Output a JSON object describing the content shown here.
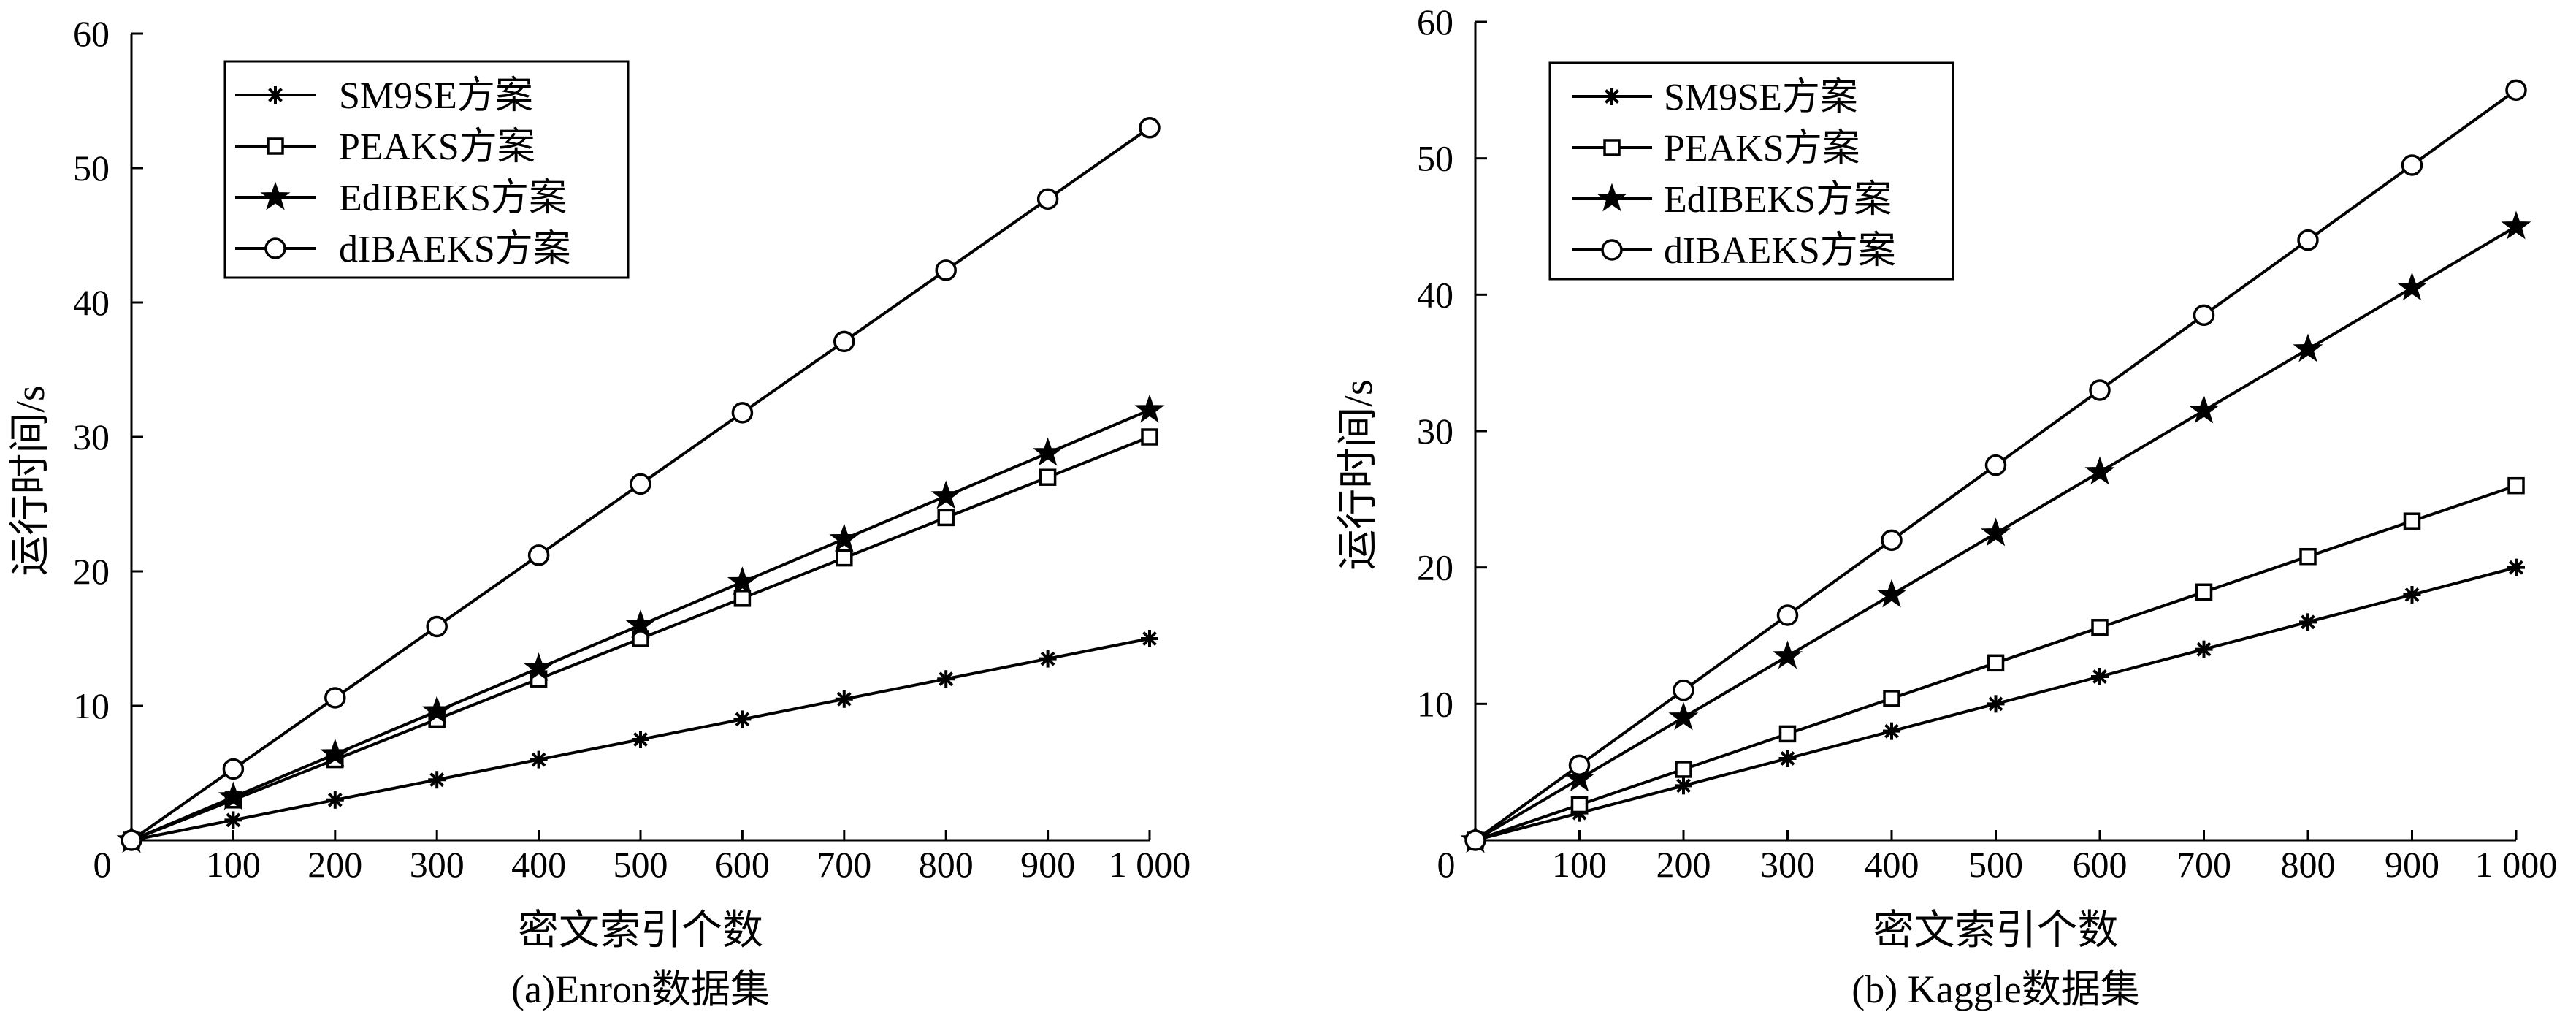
{
  "chart_data": [
    {
      "type": "line",
      "caption": "(a)Enron数据集",
      "xlabel": "密文索引个数",
      "ylabel": "运行时间/s",
      "origin_label": "0",
      "x": [
        0,
        100,
        200,
        300,
        400,
        500,
        600,
        700,
        800,
        900,
        1000
      ],
      "x_tick_labels": [
        "100",
        "200",
        "300",
        "400",
        "500",
        "600",
        "700",
        "800",
        "900",
        "1 000"
      ],
      "y_ticks": [
        10,
        20,
        30,
        40,
        50,
        60
      ],
      "xlim": [
        0,
        1000
      ],
      "ylim": [
        0,
        60
      ],
      "grid": false,
      "legend_position": "top-left",
      "series": [
        {
          "name": "SM9SE方案",
          "marker": "asterisk",
          "values": [
            0,
            1.5,
            3,
            4.5,
            6,
            7.5,
            9,
            10.5,
            12,
            13.5,
            15
          ]
        },
        {
          "name": "PEAKS方案",
          "marker": "square",
          "values": [
            0,
            3,
            6,
            9,
            12,
            15,
            18,
            21,
            24,
            27,
            30
          ]
        },
        {
          "name": "EdIBEKS方案",
          "marker": "star",
          "values": [
            0,
            3.2,
            6.4,
            9.6,
            12.8,
            16,
            19.2,
            22.4,
            25.6,
            28.8,
            32
          ]
        },
        {
          "name": "dIBAEKS方案",
          "marker": "circle",
          "values": [
            0,
            5.3,
            10.6,
            15.9,
            21.2,
            26.5,
            31.8,
            37.1,
            42.4,
            47.7,
            53
          ]
        }
      ]
    },
    {
      "type": "line",
      "caption": "(b) Kaggle数据集",
      "xlabel": "密文索引个数",
      "ylabel": "运行时间/s",
      "origin_label": "0",
      "x": [
        0,
        100,
        200,
        300,
        400,
        500,
        600,
        700,
        800,
        900,
        1000
      ],
      "x_tick_labels": [
        "100",
        "200",
        "300",
        "400",
        "500",
        "600",
        "700",
        "800",
        "900",
        "1 000"
      ],
      "y_ticks": [
        10,
        20,
        30,
        40,
        50,
        60
      ],
      "xlim": [
        0,
        1000
      ],
      "ylim": [
        0,
        60
      ],
      "grid": false,
      "legend_position": "top-left",
      "series": [
        {
          "name": "SM9SE方案",
          "marker": "asterisk",
          "values": [
            0,
            2,
            4,
            6,
            8,
            10,
            12,
            14,
            16,
            18,
            20
          ]
        },
        {
          "name": "PEAKS方案",
          "marker": "square",
          "values": [
            0,
            2.6,
            5.2,
            7.8,
            10.4,
            13,
            15.6,
            18.2,
            20.8,
            23.4,
            26
          ]
        },
        {
          "name": "EdIBEKS方案",
          "marker": "star",
          "values": [
            0,
            4.5,
            9,
            13.5,
            18,
            22.5,
            27,
            31.5,
            36,
            40.5,
            45
          ]
        },
        {
          "name": "dIBAEKS方案",
          "marker": "circle",
          "values": [
            0,
            5.5,
            11,
            16.5,
            22,
            27.5,
            33,
            38.5,
            44,
            49.5,
            55
          ]
        }
      ]
    }
  ]
}
